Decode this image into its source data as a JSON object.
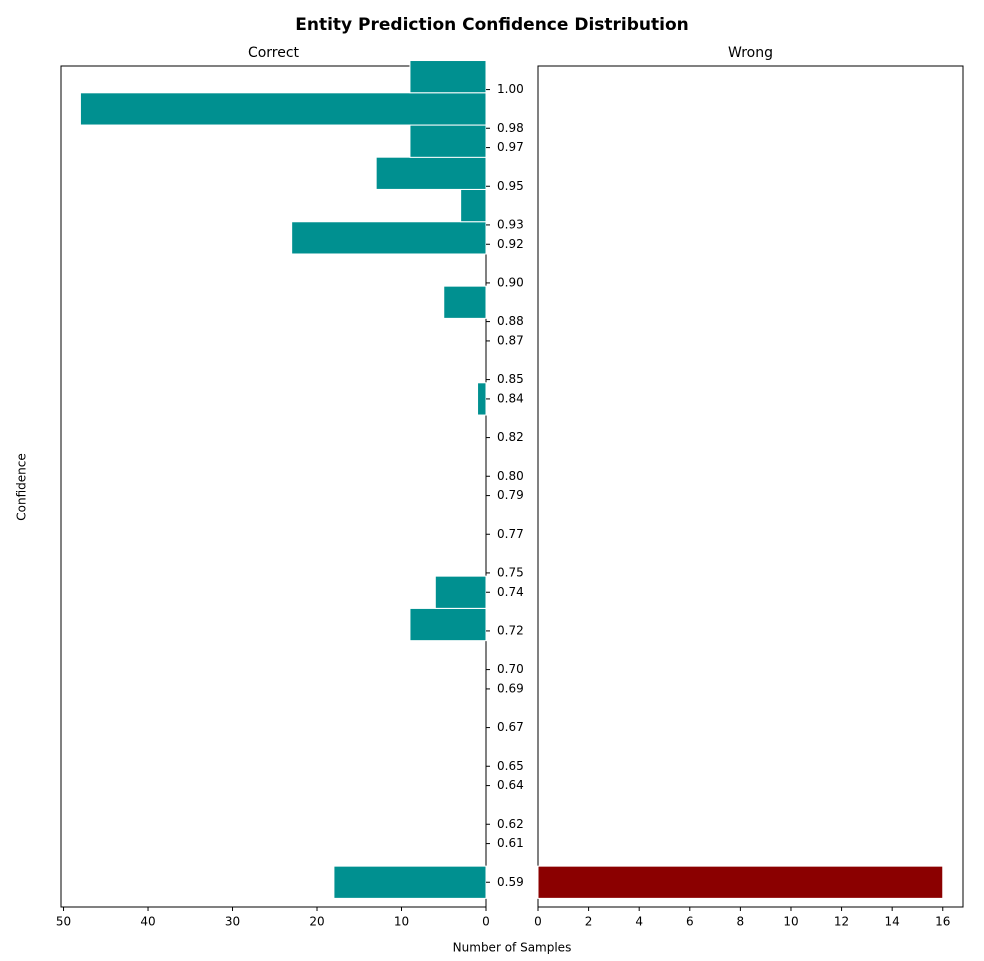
{
  "figure": {
    "title": "Entity Prediction Confidence Distribution",
    "y_axis_label": "Confidence",
    "x_axis_label": "Number of Samples",
    "background": "#ffffff"
  },
  "chart_data": [
    {
      "type": "bar",
      "orientation": "horizontal",
      "direction": "right-to-left",
      "title": "Correct",
      "xlabel": "Number of Samples",
      "ylabel": "Confidence",
      "color": "#009090",
      "edge_color": "#ffffff",
      "xlim": [
        0,
        50.3
      ],
      "ylim": [
        0.575,
        1.01
      ],
      "bin_width": 0.01666667,
      "x_ticks": [
        0,
        10,
        20,
        30,
        40,
        50
      ],
      "x_tick_labels": [
        "0",
        "10",
        "20",
        "30",
        "40",
        "50"
      ],
      "y_ticks": [
        0.5878,
        0.6078,
        0.6178,
        0.6378,
        0.6478,
        0.6678,
        0.6878,
        0.6978,
        0.7178,
        0.7378,
        0.7478,
        0.7678,
        0.7878,
        0.7978,
        0.8178,
        0.8378,
        0.8478,
        0.8678,
        0.8778,
        0.8978,
        0.9178,
        0.9278,
        0.9478,
        0.9678,
        0.9778,
        0.9978
      ],
      "y_tick_labels": [
        "0.59",
        "0.61",
        "0.62",
        "0.64",
        "0.65",
        "0.67",
        "0.69",
        "0.70",
        "0.72",
        "0.74",
        "0.75",
        "0.77",
        "0.79",
        "0.80",
        "0.82",
        "0.84",
        "0.85",
        "0.87",
        "0.88",
        "0.90",
        "0.92",
        "0.93",
        "0.95",
        "0.97",
        "0.98",
        "1.00"
      ],
      "bins": [
        {
          "y": 0.5878,
          "value": 18
        },
        {
          "y": 0.7211,
          "value": 9
        },
        {
          "y": 0.7378,
          "value": 6
        },
        {
          "y": 0.8378,
          "value": 1
        },
        {
          "y": 0.8878,
          "value": 5
        },
        {
          "y": 0.9211,
          "value": 23
        },
        {
          "y": 0.9378,
          "value": 3
        },
        {
          "y": 0.9545,
          "value": 13
        },
        {
          "y": 0.9711,
          "value": 9
        },
        {
          "y": 0.9878,
          "value": 48
        },
        {
          "y": 1.0045,
          "value": 9
        }
      ]
    },
    {
      "type": "bar",
      "orientation": "horizontal",
      "direction": "left-to-right",
      "title": "Wrong",
      "color": "#8b0000",
      "edge_color": "#ffffff",
      "xlim": [
        0,
        16.8
      ],
      "ylim": [
        0.575,
        1.01
      ],
      "bin_width": 0.01666667,
      "x_ticks": [
        0,
        2,
        4,
        6,
        8,
        10,
        12,
        14,
        16
      ],
      "x_tick_labels": [
        "0",
        "2",
        "4",
        "6",
        "8",
        "10",
        "12",
        "14",
        "16"
      ],
      "bins": [
        {
          "y": 0.5878,
          "value": 16
        }
      ]
    }
  ]
}
